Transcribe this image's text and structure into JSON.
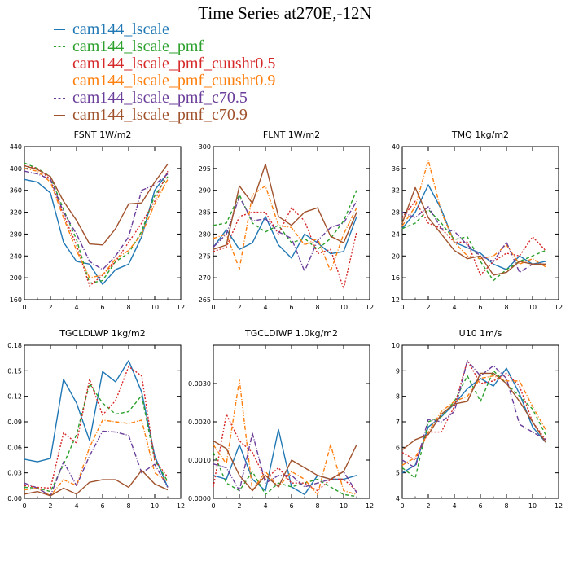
{
  "title": "Time Series at270E,-12N",
  "legend": [
    {
      "name": "cam144_lscale",
      "color": "#1f77b4",
      "dash": "none"
    },
    {
      "name": "cam144_lscale_pmf",
      "color": "#2ca02c",
      "dash": "4,3"
    },
    {
      "name": "cam144_lscale_pmf_cuushr0.5",
      "color": "#d62728",
      "dash": "2,2"
    },
    {
      "name": "cam144_lscale_pmf_cuushr0.9",
      "color": "#ff7f0e",
      "dash": "5,2,1,2"
    },
    {
      "name": "cam144_lscale_pmf_c70.5",
      "color": "#6a3d9a",
      "dash": "6,2,1,2"
    },
    {
      "name": "cam144_lscale_pmf_c70.9",
      "color": "#a0522d",
      "dash": "none"
    }
  ],
  "chart_data": [
    {
      "type": "line",
      "title": "FSNT",
      "units": "1W/m2",
      "x": [
        0,
        1,
        2,
        3,
        4,
        5,
        6,
        7,
        8,
        9,
        10,
        11
      ],
      "xlim": [
        0,
        12
      ],
      "xticks": [
        0,
        2,
        4,
        6,
        8,
        10,
        12
      ],
      "ylim": [
        160,
        440
      ],
      "yticks": [
        "160",
        "200",
        "240",
        "280",
        "320",
        "360",
        "400",
        "440"
      ],
      "ytickvals": [
        160,
        200,
        240,
        280,
        320,
        360,
        400,
        440
      ],
      "series": [
        {
          "name": "cam144_lscale",
          "values": [
            380,
            375,
            355,
            265,
            230,
            225,
            188,
            215,
            225,
            275,
            360,
            392
          ]
        },
        {
          "name": "cam144_lscale_pmf",
          "values": [
            410,
            400,
            385,
            325,
            270,
            190,
            195,
            230,
            245,
            285,
            350,
            385
          ]
        },
        {
          "name": "cam144_lscale_pmf_cuushr0.5",
          "values": [
            405,
            400,
            380,
            315,
            260,
            185,
            205,
            230,
            265,
            300,
            340,
            395
          ]
        },
        {
          "name": "cam144_lscale_pmf_cuushr0.9",
          "values": [
            400,
            395,
            375,
            310,
            250,
            200,
            205,
            235,
            250,
            280,
            335,
            380
          ]
        },
        {
          "name": "cam144_lscale_pmf_c70.5",
          "values": [
            395,
            390,
            380,
            320,
            280,
            230,
            215,
            240,
            275,
            360,
            370,
            390
          ]
        },
        {
          "name": "cam144_lscale_pmf_c70.9",
          "values": [
            405,
            398,
            385,
            340,
            305,
            262,
            260,
            290,
            335,
            337,
            375,
            408
          ]
        }
      ]
    },
    {
      "type": "line",
      "title": "FLNT",
      "units": "1W/m2",
      "x": [
        0,
        1,
        2,
        3,
        4,
        5,
        6,
        7,
        8,
        9,
        10,
        11
      ],
      "xlim": [
        0,
        12
      ],
      "xticks": [
        0,
        2,
        4,
        6,
        8,
        10,
        12
      ],
      "ylim": [
        265,
        300
      ],
      "yticks": [
        "265",
        "270",
        "275",
        "280",
        "285",
        "290",
        "295",
        "300"
      ],
      "ytickvals": [
        265,
        270,
        275,
        280,
        285,
        290,
        295,
        300
      ],
      "series": [
        {
          "name": "cam144_lscale",
          "values": [
            277,
            281,
            276.5,
            278,
            284,
            277.5,
            274.5,
            280,
            278,
            275.5,
            276,
            284
          ]
        },
        {
          "name": "cam144_lscale_pmf",
          "values": [
            282,
            282.5,
            289,
            282.5,
            280.5,
            282,
            278,
            279,
            276.5,
            279,
            283,
            290
          ]
        },
        {
          "name": "cam144_lscale_pmf_cuushr0.5",
          "values": [
            276,
            277,
            284,
            285,
            285,
            280,
            286,
            283,
            275.5,
            276.5,
            267.5,
            280.5
          ]
        },
        {
          "name": "cam144_lscale_pmf_cuushr0.9",
          "values": [
            279,
            280,
            272,
            289,
            291,
            282,
            281.5,
            277.5,
            279,
            271.5,
            280,
            286
          ]
        },
        {
          "name": "cam144_lscale_pmf_c70.5",
          "values": [
            277,
            280,
            288.5,
            283,
            283.5,
            280.5,
            279,
            271.5,
            278.5,
            281.5,
            282.5,
            287.5
          ]
        },
        {
          "name": "cam144_lscale_pmf_c70.9",
          "values": [
            276.5,
            277.5,
            291,
            287,
            296,
            284,
            282,
            285,
            286,
            279.5,
            278,
            285
          ]
        }
      ]
    },
    {
      "type": "line",
      "title": "TMQ",
      "units": "1kg/m2",
      "x": [
        0,
        1,
        2,
        3,
        4,
        5,
        6,
        7,
        8,
        9,
        10,
        11
      ],
      "xlim": [
        0,
        12
      ],
      "xticks": [
        0,
        2,
        4,
        6,
        8,
        10,
        12
      ],
      "ylim": [
        12,
        40
      ],
      "yticks": [
        "12",
        "16",
        "20",
        "24",
        "28",
        "32",
        "36",
        "40"
      ],
      "ytickvals": [
        12,
        16,
        20,
        24,
        28,
        32,
        36,
        40
      ],
      "series": [
        {
          "name": "cam144_lscale",
          "values": [
            25,
            28,
            33,
            28.5,
            22.5,
            21.5,
            20.5,
            18.5,
            17.5,
            20,
            18.5,
            19
          ]
        },
        {
          "name": "cam144_lscale_pmf",
          "values": [
            25,
            26,
            28.5,
            26,
            23,
            23.5,
            19,
            15.5,
            17.5,
            19,
            20,
            21
          ]
        },
        {
          "name": "cam144_lscale_pmf_cuushr0.5",
          "values": [
            27,
            30,
            26,
            25,
            22.5,
            22.5,
            16.5,
            19,
            20.5,
            20,
            23.5,
            21
          ]
        },
        {
          "name": "cam144_lscale_pmf_cuushr0.9",
          "values": [
            25.5,
            29,
            37.5,
            28,
            22.5,
            20,
            19.5,
            20,
            22,
            18.5,
            19.5,
            18
          ]
        },
        {
          "name": "cam144_lscale_pmf_c70.5",
          "values": [
            28,
            27,
            29,
            25,
            24.5,
            22,
            20,
            19,
            22.5,
            17,
            18.5,
            18.5
          ]
        },
        {
          "name": "cam144_lscale_pmf_c70.9",
          "values": [
            26,
            32.5,
            27,
            24,
            21,
            19.5,
            20,
            16.5,
            17,
            19,
            18.5,
            18.5
          ]
        }
      ]
    },
    {
      "type": "line",
      "title": "TGCLDLWP",
      "units": "1kg/m2",
      "x": [
        0,
        1,
        2,
        3,
        4,
        5,
        6,
        7,
        8,
        9,
        10,
        11
      ],
      "xlim": [
        0,
        12
      ],
      "xticks": [
        0,
        2,
        4,
        6,
        8,
        10,
        12
      ],
      "ylim": [
        0,
        0.18
      ],
      "yticks": [
        "0.00",
        "0.03",
        "0.06",
        "0.09",
        "0.12",
        "0.15",
        "0.18"
      ],
      "ytickvals": [
        0,
        0.03,
        0.06,
        0.09,
        0.12,
        0.15,
        0.18
      ],
      "series": [
        {
          "name": "cam144_lscale",
          "values": [
            0.046,
            0.043,
            0.047,
            0.14,
            0.112,
            0.068,
            0.149,
            0.137,
            0.162,
            0.125,
            0.05,
            0.013
          ]
        },
        {
          "name": "cam144_lscale_pmf",
          "values": [
            0.013,
            0.012,
            0.008,
            0.04,
            0.075,
            0.135,
            0.112,
            0.099,
            0.102,
            0.121,
            0.045,
            0.02
          ]
        },
        {
          "name": "cam144_lscale_pmf_cuushr0.5",
          "values": [
            0.015,
            0.013,
            0.012,
            0.077,
            0.065,
            0.14,
            0.098,
            0.115,
            0.155,
            0.144,
            0.045,
            0.025
          ]
        },
        {
          "name": "cam144_lscale_pmf_cuushr0.9",
          "values": [
            0.01,
            0.012,
            0.003,
            0.022,
            0.015,
            0.06,
            0.092,
            0.09,
            0.088,
            0.092,
            0.03,
            0.02
          ]
        },
        {
          "name": "cam144_lscale_pmf_c70.5",
          "values": [
            0.018,
            0.012,
            0.003,
            0.043,
            0.015,
            0.05,
            0.079,
            0.078,
            0.074,
            0.03,
            0.04,
            0.013
          ]
        },
        {
          "name": "cam144_lscale_pmf_c70.9",
          "values": [
            0.005,
            0.008,
            0.003,
            0.012,
            0.005,
            0.019,
            0.022,
            0.022,
            0.013,
            0.033,
            0.017,
            0.01
          ]
        }
      ]
    },
    {
      "type": "line",
      "title": "TGCLDIWP",
      "units": "1.0kg/m2",
      "x": [
        0,
        1,
        2,
        3,
        4,
        5,
        6,
        7,
        8,
        9,
        10,
        11
      ],
      "xlim": [
        0,
        12
      ],
      "xticks": [
        0,
        2,
        4,
        6,
        8,
        10,
        12
      ],
      "ylim": [
        0,
        0.004
      ],
      "yticks": [
        "0.0000",
        "0.0010",
        "0.0020",
        "0.0030"
      ],
      "ytickvals": [
        0,
        0.001,
        0.002,
        0.003
      ],
      "series": [
        {
          "name": "cam144_lscale",
          "values": [
            0.0006,
            0.0005,
            0.0014,
            0.0005,
            0.0002,
            0.0018,
            0.0003,
            0.0001,
            0.0006,
            0.0005,
            0.0005,
            0.0006
          ]
        },
        {
          "name": "cam144_lscale_pmf",
          "values": [
            0.0012,
            0.0004,
            0.0002,
            0.0007,
            0.0001,
            0.0004,
            0.0003,
            0.0004,
            0.0005,
            0.0003,
            0.0001,
            5e-05
          ]
        },
        {
          "name": "cam144_lscale_pmf_cuushr0.5",
          "values": [
            0.0003,
            0.0022,
            0.0015,
            0.0012,
            0.0005,
            0.0008,
            0.0004,
            0.0004,
            0.0002,
            0.0005,
            0.0005,
            0.0002
          ]
        },
        {
          "name": "cam144_lscale_pmf_cuushr0.9",
          "values": [
            0.0014,
            0.0009,
            0.0031,
            0.0002,
            0.0007,
            0.0003,
            0.0007,
            0.0005,
            0.0001,
            0.0014,
            0.0002,
            0.0001
          ]
        },
        {
          "name": "cam144_lscale_pmf_c70.5",
          "values": [
            0.0009,
            0.0008,
            0.0002,
            0.0017,
            0.0004,
            0.0006,
            0.0006,
            0.0003,
            0.0004,
            0.0005,
            0.0007,
            0.00015
          ]
        },
        {
          "name": "cam144_lscale_pmf_c70.9",
          "values": [
            0.0015,
            0.0013,
            0.0006,
            0.0002,
            0.0006,
            0.0003,
            0.001,
            0.0008,
            0.0006,
            0.0005,
            0.0007,
            0.0014
          ]
        }
      ]
    },
    {
      "type": "line",
      "title": "U10",
      "units": "1m/s",
      "x": [
        0,
        1,
        2,
        3,
        4,
        5,
        6,
        7,
        8,
        9,
        10,
        11
      ],
      "xlim": [
        0,
        12
      ],
      "xticks": [
        0,
        2,
        4,
        6,
        8,
        10,
        12
      ],
      "ylim": [
        4,
        10
      ],
      "yticks": [
        "4",
        "5",
        "6",
        "7",
        "8",
        "9",
        "10"
      ],
      "ytickvals": [
        4,
        5,
        6,
        7,
        8,
        9,
        10
      ],
      "series": [
        {
          "name": "cam144_lscale",
          "values": [
            5.0,
            5.3,
            6.8,
            7.2,
            7.7,
            8.3,
            8.7,
            8.4,
            9.1,
            8.1,
            6.8,
            6.2
          ]
        },
        {
          "name": "cam144_lscale_pmf",
          "values": [
            5.2,
            4.8,
            7.0,
            7.2,
            7.8,
            8.8,
            7.8,
            9.0,
            8.5,
            8.0,
            7.5,
            6.5
          ]
        },
        {
          "name": "cam144_lscale_pmf_cuushr0.5",
          "values": [
            5.8,
            5.5,
            6.6,
            6.6,
            7.6,
            9.4,
            8.5,
            8.6,
            8.9,
            8.4,
            7.0,
            6.3
          ]
        },
        {
          "name": "cam144_lscale_pmf_cuushr0.9",
          "values": [
            5.3,
            5.6,
            6.6,
            7.4,
            7.8,
            8.0,
            8.7,
            8.8,
            8.6,
            8.6,
            7.6,
            6.7
          ]
        },
        {
          "name": "cam144_lscale_pmf_c70.5",
          "values": [
            5.5,
            5.2,
            7.1,
            7.0,
            7.4,
            9.4,
            8.8,
            9.2,
            8.7,
            6.9,
            6.6,
            6.3
          ]
        },
        {
          "name": "cam144_lscale_pmf_c70.9",
          "values": [
            5.9,
            6.3,
            6.5,
            7.3,
            7.7,
            7.8,
            8.9,
            8.9,
            8.5,
            7.8,
            7.0,
            6.2
          ]
        }
      ]
    }
  ]
}
